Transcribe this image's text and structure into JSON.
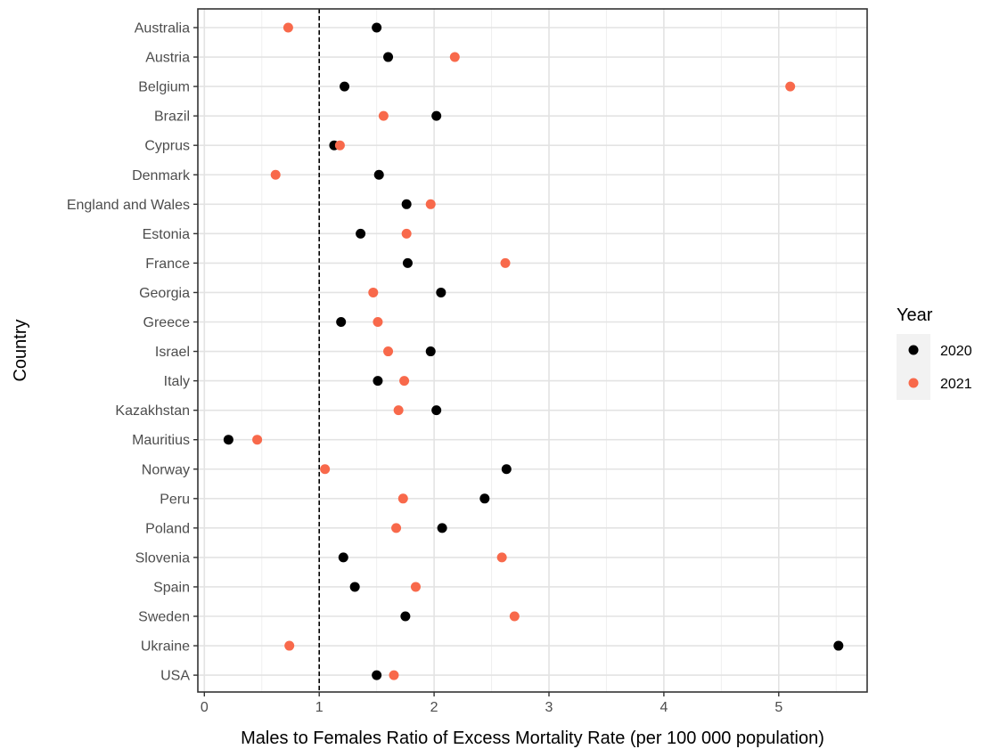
{
  "chart_data": {
    "type": "scatter",
    "title": "",
    "xlabel": "Males to Females Ratio of Excess Mortality Rate (per 100 000 population)",
    "ylabel": "Country",
    "xlim": [
      0,
      5.8
    ],
    "x_ticks": [
      "0",
      "1",
      "2",
      "3",
      "4",
      "5"
    ],
    "grid": true,
    "reference_line": {
      "x": 1,
      "style": "dashed",
      "color": "#000000"
    },
    "legend": {
      "title": "Year",
      "position": "right"
    },
    "categories": [
      "Australia",
      "Austria",
      "Belgium",
      "Brazil",
      "Cyprus",
      "Denmark",
      "England and Wales",
      "Estonia",
      "France",
      "Georgia",
      "Greece",
      "Israel",
      "Italy",
      "Kazakhstan",
      "Mauritius",
      "Norway",
      "Peru",
      "Poland",
      "Slovenia",
      "Spain",
      "Sweden",
      "Ukraine",
      "USA"
    ],
    "series": [
      {
        "name": "2020",
        "color": "#000000",
        "values": [
          1.5,
          1.6,
          1.22,
          2.02,
          1.13,
          1.52,
          1.76,
          1.36,
          1.77,
          2.06,
          1.19,
          1.97,
          1.51,
          2.02,
          0.21,
          2.63,
          2.44,
          2.07,
          1.21,
          1.31,
          1.75,
          5.52,
          1.5
        ]
      },
      {
        "name": "2021",
        "color": "#F8694B",
        "values": [
          0.73,
          2.18,
          5.1,
          1.56,
          1.18,
          0.62,
          1.97,
          1.76,
          2.62,
          1.47,
          1.51,
          1.6,
          1.74,
          1.69,
          0.46,
          1.05,
          1.73,
          1.67,
          2.59,
          1.84,
          2.7,
          0.74,
          1.65
        ]
      }
    ]
  }
}
